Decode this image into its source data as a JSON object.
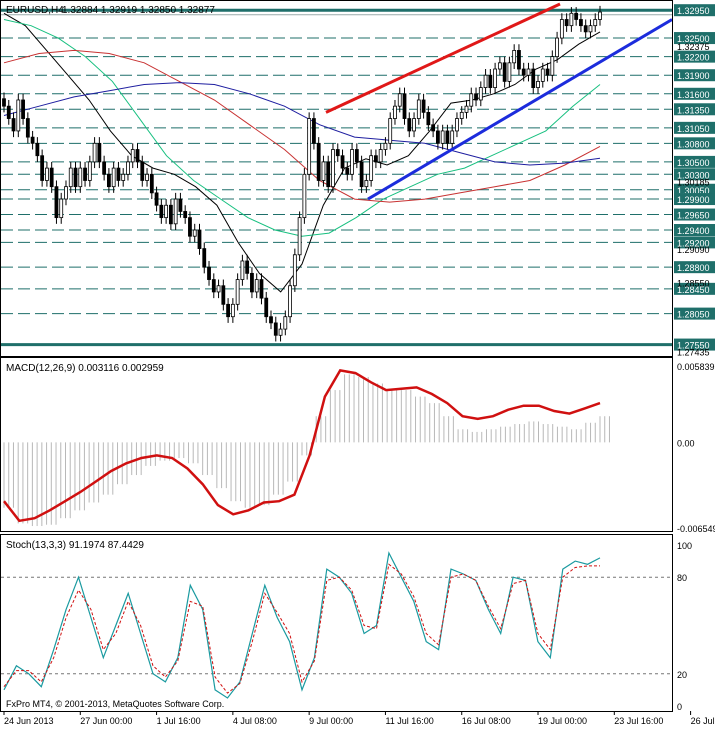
{
  "chart_data": {
    "type": "candlestick",
    "symbol_label": "EURUSD,H4",
    "ohlc_label": "1.32884 1.32919 1.32850 1.32877",
    "watermark": "FxPro MT4, © 2001-2013, MetaQuotes Software Corp.",
    "price_axis": {
      "ylim": [
        1.2743,
        1.3305
      ],
      "levels": [
        "1.32950",
        "1.32500",
        "1.32200",
        "1.31900",
        "1.31600",
        "1.31350",
        "1.31050",
        "1.30800",
        "1.30500",
        "1.30300",
        "1.30050",
        "1.29900",
        "1.29650",
        "1.29400",
        "1.29200",
        "1.28800",
        "1.28450",
        "1.28050",
        "1.27550"
      ],
      "minor_labels": [
        "1.32375",
        "1.29090",
        "1.28550",
        "1.27435",
        "1.30185"
      ],
      "current_price": 1.32877
    },
    "time_axis": {
      "labels": [
        "24 Jun 2013",
        "27 Jun 00:00",
        "1 Jul 16:00",
        "4 Jul 08:00",
        "9 Jul 00:00",
        "11 Jul 16:00",
        "16 Jul 08:00",
        "19 Jul 00:00",
        "23 Jul 16:00",
        "26 Jul 08:00"
      ],
      "positions": [
        0,
        16,
        32,
        48,
        64,
        80,
        96,
        112,
        128,
        144
      ]
    },
    "price_series": [
      1.314,
      1.312,
      1.31,
      1.315,
      1.312,
      1.309,
      1.308,
      1.306,
      1.302,
      1.304,
      1.301,
      1.296,
      1.299,
      1.301,
      1.304,
      1.301,
      1.304,
      1.302,
      1.305,
      1.308,
      1.305,
      1.303,
      1.301,
      1.304,
      1.302,
      1.303,
      1.305,
      1.307,
      1.305,
      1.302,
      1.303,
      1.3,
      1.298,
      1.296,
      1.298,
      1.295,
      1.299,
      1.297,
      1.296,
      1.293,
      1.294,
      1.291,
      1.288,
      1.286,
      1.284,
      1.285,
      1.282,
      1.28,
      1.282,
      1.286,
      1.289,
      1.287,
      1.284,
      1.286,
      1.283,
      1.28,
      1.279,
      1.277,
      1.278,
      1.28,
      1.285,
      1.29,
      1.296,
      1.303,
      1.312,
      1.308,
      1.302,
      1.305,
      1.301,
      1.307,
      1.306,
      1.304,
      1.303,
      1.307,
      1.305,
      1.301,
      1.302,
      1.306,
      1.305,
      1.307,
      1.308,
      1.312,
      1.314,
      1.316,
      1.312,
      1.31,
      1.312,
      1.315,
      1.313,
      1.311,
      1.31,
      1.308,
      1.31,
      1.308,
      1.31,
      1.312,
      1.313,
      1.314,
      1.316,
      1.315,
      1.317,
      1.319,
      1.317,
      1.32,
      1.321,
      1.318,
      1.321,
      1.323,
      1.32,
      1.319,
      1.32,
      1.317,
      1.318,
      1.32,
      1.319,
      1.322,
      1.325,
      1.328,
      1.327,
      1.329,
      1.328,
      1.327,
      1.326,
      1.327,
      1.328,
      1.3292
    ],
    "moving_averages": [
      {
        "color": "#000000",
        "values": [
          1.329,
          1.327,
          1.323,
          1.319,
          1.315,
          1.31,
          1.306,
          1.304,
          1.303,
          1.301,
          1.298,
          1.292,
          1.287,
          1.284,
          1.2885,
          1.298,
          1.304,
          1.3055,
          1.3045,
          1.306,
          1.31,
          1.3145,
          1.315,
          1.316,
          1.3175,
          1.32,
          1.3215,
          1.324,
          1.326
        ]
      },
      {
        "color": "#18c080",
        "values": [
          1.328,
          1.327,
          1.325,
          1.322,
          1.318,
          1.312,
          1.306,
          1.302,
          1.299,
          1.296,
          1.294,
          1.293,
          1.2935,
          1.296,
          1.299,
          1.301,
          1.303,
          1.304,
          1.306,
          1.308,
          1.31,
          1.314,
          1.3175
        ]
      },
      {
        "color": "#c83232",
        "values": [
          1.321,
          1.3225,
          1.323,
          1.3225,
          1.321,
          1.318,
          1.315,
          1.311,
          1.307,
          1.302,
          1.299,
          1.2985,
          1.299,
          1.3,
          1.301,
          1.302,
          1.3045,
          1.3075
        ]
      },
      {
        "color": "#1e1ea0",
        "values": [
          1.3125,
          1.314,
          1.3155,
          1.3165,
          1.3175,
          1.3178,
          1.3175,
          1.316,
          1.314,
          1.311,
          1.309,
          1.3085,
          1.308,
          1.3065,
          1.305,
          1.3045,
          1.3048,
          1.3056
        ]
      }
    ],
    "trendlines": [
      {
        "color": "#e01818",
        "from": [
          1.313
        ],
        "to": [
          1.3305
        ]
      },
      {
        "color": "#1c2cdc",
        "from": [
          1.299
        ],
        "to": [
          1.328
        ]
      }
    ],
    "macd": {
      "label": "MACD(12,26,9) 0.003116 0.002959",
      "levels": [
        "0.005839",
        "0.00",
        "-0.006549"
      ],
      "ylim": [
        -0.00655,
        0.00584
      ],
      "histogram": [
        -0.005,
        -0.0062,
        -0.0064,
        -0.0063,
        -0.0058,
        -0.0052,
        -0.0046,
        -0.004,
        -0.0032,
        -0.0025,
        -0.0018,
        -0.0014,
        -0.0012,
        -0.0016,
        -0.0025,
        -0.0035,
        -0.0045,
        -0.005,
        -0.0048,
        -0.004,
        -0.003,
        -0.001,
        0.002,
        0.004,
        0.0052,
        0.005,
        0.0045,
        0.004,
        0.004,
        0.0035,
        0.003,
        0.002,
        0.001,
        0.0008,
        0.001,
        0.0012,
        0.0014,
        0.0016,
        0.0014,
        0.0012,
        0.001,
        0.0015,
        0.002
      ],
      "signal": [
        -0.0045,
        -0.006,
        -0.0058,
        -0.0052,
        -0.0045,
        -0.0038,
        -0.003,
        -0.0022,
        -0.0016,
        -0.0012,
        -0.001,
        -0.0012,
        -0.002,
        -0.0032,
        -0.0048,
        -0.0055,
        -0.0052,
        -0.0046,
        -0.0045,
        -0.004,
        -0.001,
        0.0035,
        0.0055,
        0.0053,
        0.0046,
        0.004,
        0.0041,
        0.0042,
        0.0037,
        0.003,
        0.002,
        0.0018,
        0.002,
        0.0025,
        0.0028,
        0.0028,
        0.0024,
        0.0022,
        0.0026,
        0.003
      ]
    },
    "stoch": {
      "label": "Stoch(13,3,3) 91.1974 87.4429",
      "levels": [
        "100",
        "80",
        "20",
        "0"
      ],
      "ylim": [
        0,
        100
      ],
      "main": [
        10,
        25,
        20,
        12,
        35,
        60,
        80,
        55,
        30,
        50,
        70,
        45,
        20,
        15,
        30,
        75,
        60,
        10,
        5,
        15,
        45,
        75,
        55,
        40,
        10,
        30,
        85,
        80,
        70,
        45,
        50,
        95,
        80,
        65,
        40,
        35,
        85,
        82,
        78,
        60,
        45,
        80,
        78,
        40,
        30,
        85,
        90,
        88,
        92
      ],
      "signal": [
        12,
        22,
        22,
        15,
        30,
        55,
        72,
        60,
        35,
        45,
        65,
        50,
        25,
        18,
        28,
        65,
        62,
        18,
        8,
        14,
        40,
        70,
        58,
        45,
        15,
        28,
        78,
        80,
        72,
        50,
        48,
        88,
        82,
        68,
        45,
        38,
        80,
        82,
        78,
        62,
        48,
        76,
        78,
        45,
        35,
        80,
        86,
        87,
        87
      ]
    }
  }
}
